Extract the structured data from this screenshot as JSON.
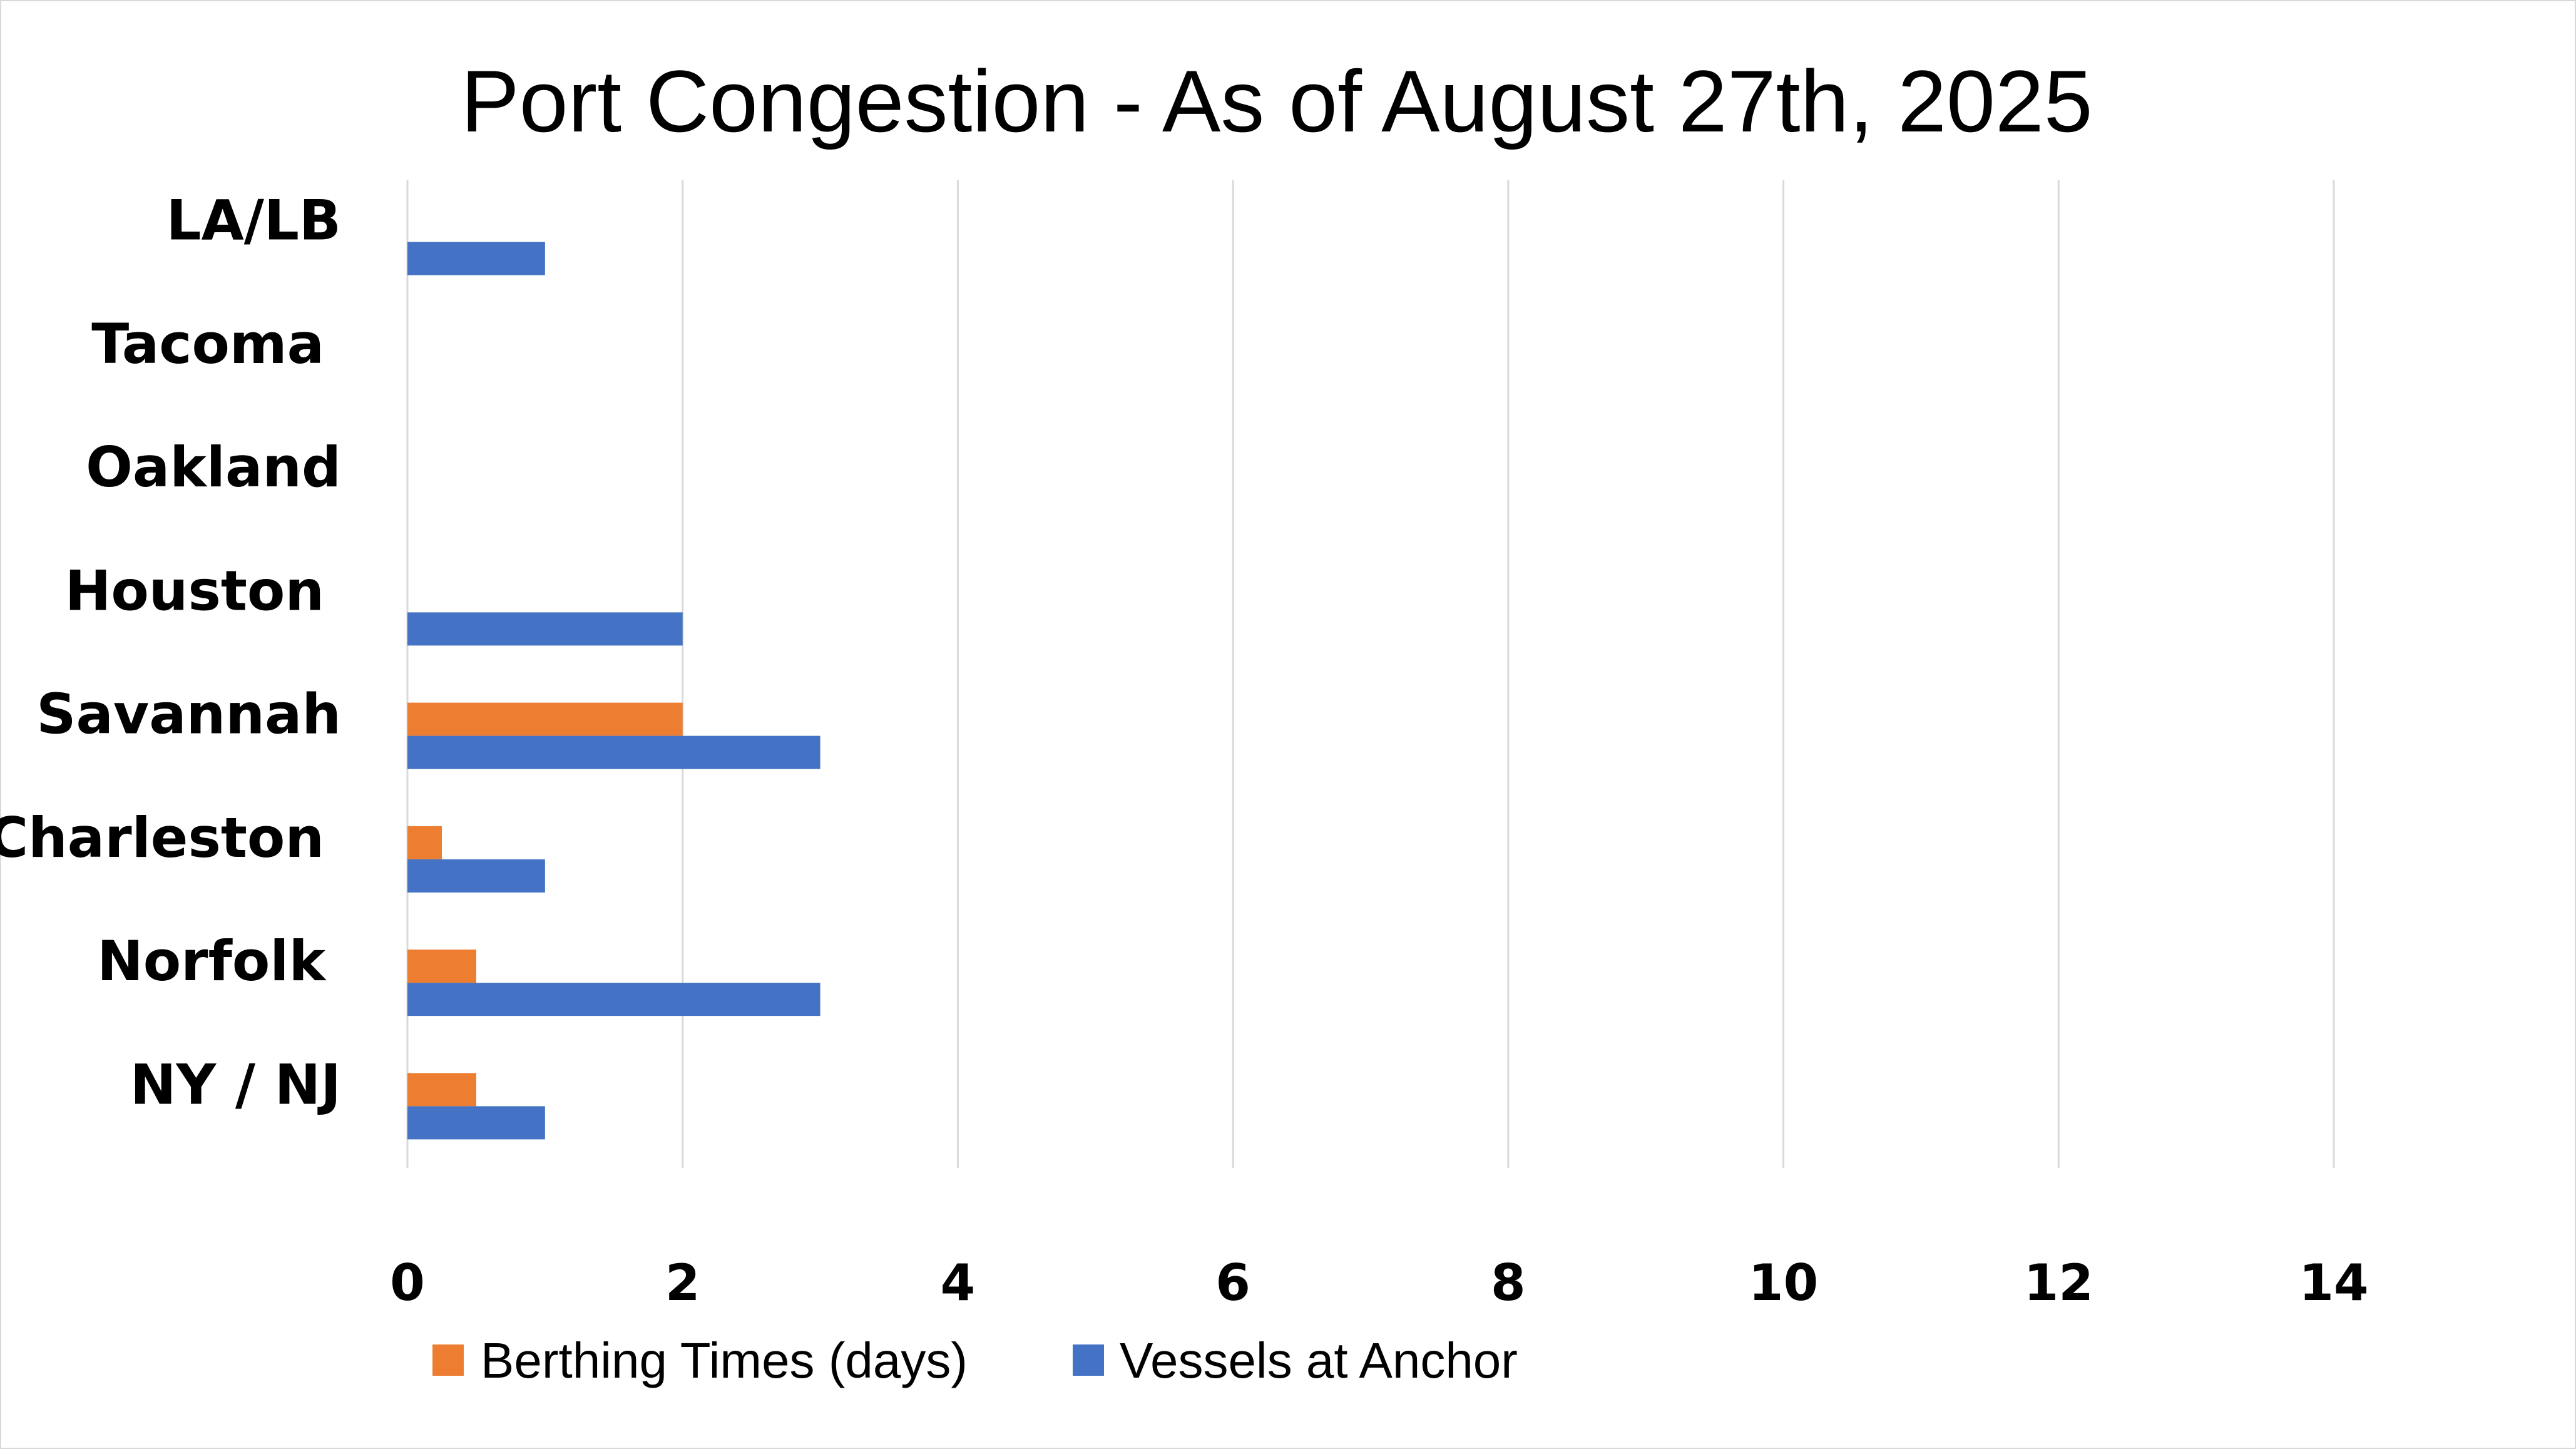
{
  "chart_data": {
    "type": "bar",
    "orientation": "horizontal",
    "title": "Port Congestion - As of August 27th, 2025",
    "categories": [
      "LA/LB",
      "Tacoma",
      "Oakland",
      "Houston",
      "Savannah",
      "Charleston",
      "Norfolk",
      "NY / NJ"
    ],
    "series": [
      {
        "name": "Berthing Times (days)",
        "color": "#ED7D31",
        "values": [
          0,
          0,
          0,
          0,
          2,
          0.25,
          0.5,
          0.5
        ]
      },
      {
        "name": "Vessels at Anchor",
        "color": "#4472C4",
        "values": [
          1,
          0,
          0,
          2,
          3,
          1,
          3,
          1
        ]
      }
    ],
    "xlim": [
      0,
      14
    ],
    "xticks": [
      0,
      2,
      4,
      6,
      8,
      10,
      12,
      14
    ],
    "tick_labels": [
      "0",
      "2",
      "4",
      "6",
      "8",
      "10",
      "12",
      "14"
    ],
    "grid": true,
    "legend_position": "bottom",
    "xlabel": "",
    "ylabel": ""
  }
}
